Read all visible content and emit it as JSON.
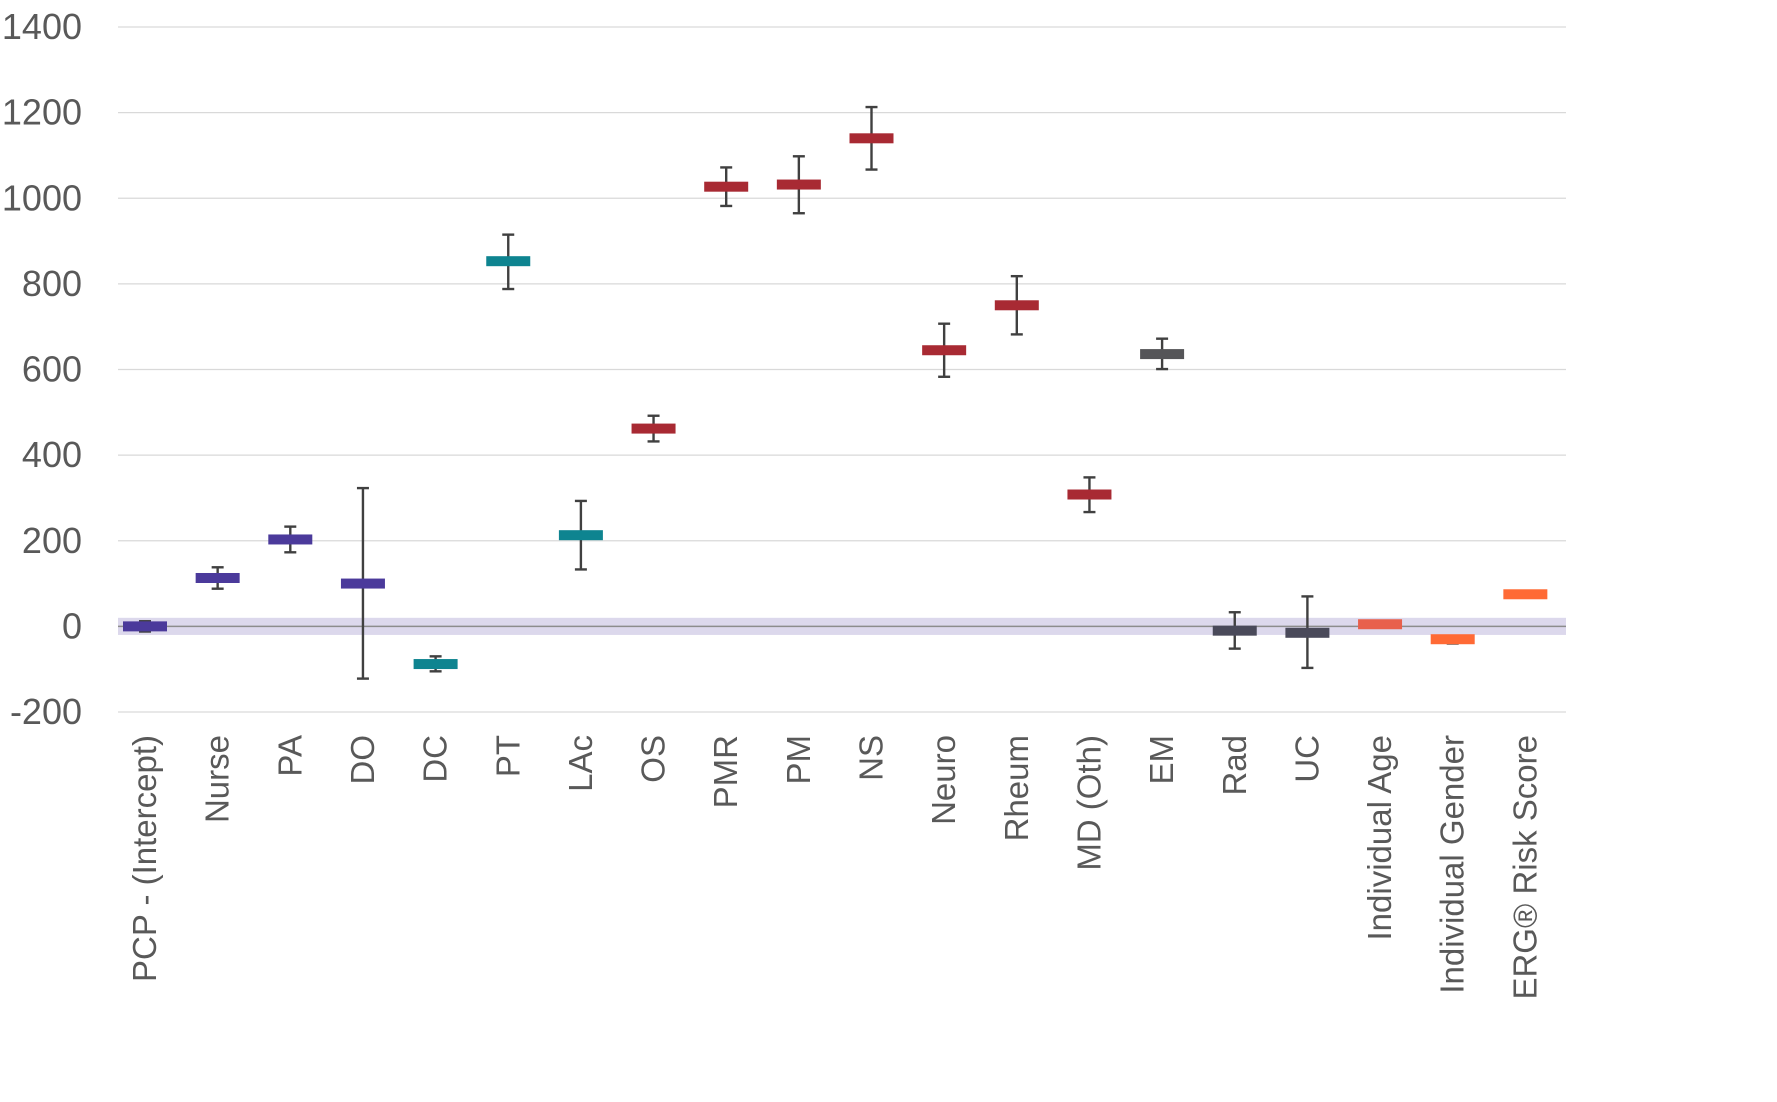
{
  "chart_data": {
    "type": "scatter",
    "title": "",
    "xlabel": "",
    "ylabel": "",
    "ylim": [
      -200,
      1400
    ],
    "yticks": [
      -200,
      0,
      200,
      400,
      600,
      800,
      1000,
      1200,
      1400
    ],
    "grid": true,
    "legend": "none",
    "reference_band": {
      "from": -20,
      "to": 20,
      "color": "#DCD8EC"
    },
    "colors": {
      "purple": "#4B3A9B",
      "teal": "#0E8490",
      "red": "#A82A33",
      "gray": "#555558",
      "slate": "#4A4A5A",
      "coral": "#E8604C",
      "orange": "#FF6A35",
      "error_bar": "#404040",
      "grid": "#D9D9D9",
      "axis_text": "#595959"
    },
    "categories": [
      "PCP - (Intercept)",
      "Nurse",
      "PA",
      "DO",
      "DC",
      "PT",
      "LAc",
      "OS",
      "PMR",
      "PM",
      "NS",
      "Neuro",
      "Rheum",
      "MD (Oth)",
      "EM",
      "Rad",
      "UC",
      "Individual Age",
      "Individual Gender",
      "ERG® Risk Score"
    ],
    "points": [
      {
        "category": "PCP - (Intercept)",
        "value": 0,
        "low": -12,
        "high": 12,
        "color": "purple"
      },
      {
        "category": "Nurse",
        "value": 113,
        "low": 88,
        "high": 138,
        "color": "purple"
      },
      {
        "category": "PA",
        "value": 203,
        "low": 173,
        "high": 233,
        "color": "purple"
      },
      {
        "category": "DO",
        "value": 100,
        "low": -122,
        "high": 323,
        "color": "purple"
      },
      {
        "category": "DC",
        "value": -88,
        "low": -105,
        "high": -70,
        "color": "teal"
      },
      {
        "category": "PT",
        "value": 853,
        "low": 788,
        "high": 915,
        "color": "teal"
      },
      {
        "category": "LAc",
        "value": 213,
        "low": 133,
        "high": 293,
        "color": "teal"
      },
      {
        "category": "OS",
        "value": 462,
        "low": 432,
        "high": 492,
        "color": "red"
      },
      {
        "category": "PMR",
        "value": 1027,
        "low": 982,
        "high": 1072,
        "color": "red"
      },
      {
        "category": "PM",
        "value": 1032,
        "low": 965,
        "high": 1098,
        "color": "red"
      },
      {
        "category": "NS",
        "value": 1140,
        "low": 1067,
        "high": 1213,
        "color": "red"
      },
      {
        "category": "Neuro",
        "value": 645,
        "low": 583,
        "high": 707,
        "color": "red"
      },
      {
        "category": "Rheum",
        "value": 750,
        "low": 682,
        "high": 818,
        "color": "red"
      },
      {
        "category": "MD (Oth)",
        "value": 308,
        "low": 267,
        "high": 348,
        "color": "red"
      },
      {
        "category": "EM",
        "value": 636,
        "low": 601,
        "high": 672,
        "color": "gray"
      },
      {
        "category": "Rad",
        "value": -10,
        "low": -52,
        "high": 33,
        "color": "slate"
      },
      {
        "category": "UC",
        "value": -15,
        "low": -97,
        "high": 70,
        "color": "slate"
      },
      {
        "category": "Individual Age",
        "value": 5,
        "low": 3,
        "high": 7,
        "color": "coral"
      },
      {
        "category": "Individual Gender",
        "value": -30,
        "low": -40,
        "high": -22,
        "color": "orange"
      },
      {
        "category": "ERG® Risk Score",
        "value": 75,
        "low": 73,
        "high": 77,
        "color": "orange"
      }
    ]
  }
}
